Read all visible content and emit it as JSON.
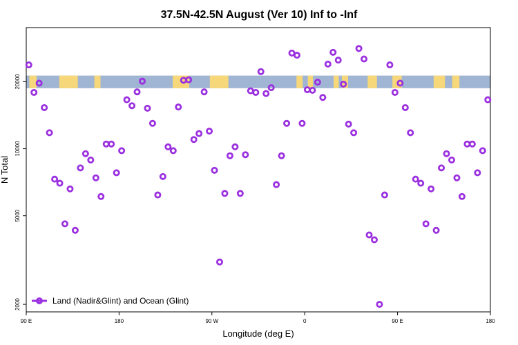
{
  "chart_data": {
    "type": "scatter",
    "title": "37.5N-42.5N August (Ver 10)   Inf to -Inf",
    "xlabel": "Longitude (deg E)",
    "ylabel": "N Total",
    "x_ticks": [
      {
        "value": 90,
        "label": "90 E"
      },
      {
        "value": 180,
        "label": "180"
      },
      {
        "value": 270,
        "label": "90 W"
      },
      {
        "value": 360,
        "label": "0"
      },
      {
        "value": 450,
        "label": "90 E"
      },
      {
        "value": 540,
        "label": "180"
      }
    ],
    "y_ticks": [
      {
        "value": 2000,
        "label": "2000"
      },
      {
        "value": 5000,
        "label": "5000"
      },
      {
        "value": 10000,
        "label": "10000"
      },
      {
        "value": 20000,
        "label": "20000"
      }
    ],
    "xlim": [
      90,
      540
    ],
    "ylim_log": [
      1850,
      35000
    ],
    "y_scale": "log",
    "legend": {
      "label": "Land (Nadir&Glint) and Ocean (Glint)",
      "position": "bottom-left"
    },
    "colors": {
      "marker": "#9b30e0",
      "ocean": "#9fb5d3",
      "land": "#f6d77a"
    },
    "land_band": {
      "y_range": [
        18700,
        21300
      ],
      "land_segments": [
        [
          93,
          100
        ],
        [
          122,
          140
        ],
        [
          156,
          162
        ],
        [
          232,
          248
        ],
        [
          268,
          286
        ],
        [
          352,
          358
        ],
        [
          363,
          368
        ],
        [
          388,
          393
        ],
        [
          396,
          402
        ],
        [
          421,
          430
        ],
        [
          445,
          454
        ],
        [
          485,
          496
        ],
        [
          503,
          510
        ]
      ]
    },
    "series": [
      {
        "name": "Land (Nadir&Glint) and Ocean (Glint)",
        "x": [
          92.5,
          97.5,
          102.5,
          107.5,
          112.5,
          117.5,
          122.5,
          127.5,
          132.5,
          137.5,
          142.5,
          147.5,
          152.5,
          157.5,
          162.5,
          167.5,
          172.5,
          177.5,
          182.5,
          187.5,
          192.5,
          197.5,
          202.5,
          207.5,
          212.5,
          217.5,
          222.5,
          227.5,
          232.5,
          237.5,
          242.5,
          247.5,
          252.5,
          257.5,
          262.5,
          267.5,
          272.5,
          277.5,
          282.5,
          287.5,
          292.5,
          297.5,
          302.5,
          307.5,
          312.5,
          317.5,
          322.5,
          327.5,
          332.5,
          337.5,
          342.5,
          347.5,
          352.5,
          357.5,
          362.5,
          367.5,
          372.5,
          377.5,
          382.5,
          387.5,
          392.5,
          397.5,
          402.5,
          407.5,
          412.5,
          417.5,
          422.5,
          427.5,
          432.5,
          437.5,
          442.5,
          447.5,
          452.5,
          457.5,
          462.5,
          467.5,
          472.5,
          477.5,
          482.5,
          487.5,
          492.5,
          497.5,
          502.5,
          507.5,
          512.5,
          517.5,
          522.5,
          527.5,
          532.5,
          537.5
        ],
        "y": [
          23800,
          17900,
          19700,
          15300,
          11800,
          7300,
          7000,
          4600,
          6600,
          4300,
          8200,
          9500,
          8900,
          7400,
          6100,
          10500,
          10500,
          7800,
          9800,
          16600,
          15600,
          18000,
          20100,
          15200,
          13000,
          6200,
          7500,
          10200,
          9800,
          15400,
          20300,
          20400,
          11000,
          11700,
          18000,
          12000,
          8000,
          3100,
          6300,
          9300,
          10200,
          6300,
          9400,
          18200,
          17900,
          22200,
          17700,
          18800,
          6900,
          9300,
          13000,
          26900,
          26300,
          13000,
          18400,
          18300,
          19900,
          17000,
          24000,
          27100,
          25000,
          19500,
          12900,
          11800,
          28200,
          25300,
          4100,
          3900,
          2000,
          6200,
          23800,
          17900,
          19700,
          15300,
          11800,
          7300,
          7000,
          4600,
          6600,
          4300,
          8200,
          9500,
          8900,
          7400,
          6100,
          10500,
          10500,
          7800,
          9800,
          16600
        ]
      }
    ]
  }
}
